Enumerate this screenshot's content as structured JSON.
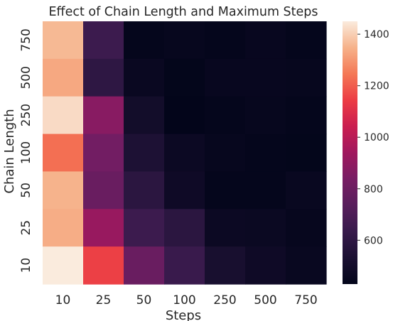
{
  "chart_data": {
    "type": "heatmap",
    "title": "Effect of Chain Length and Maximum Steps",
    "xlabel": "Steps",
    "ylabel": "Chain Length",
    "x_categories": [
      "10",
      "25",
      "50",
      "100",
      "250",
      "500",
      "750"
    ],
    "y_categories": [
      "750",
      "500",
      "250",
      "100",
      "50",
      "25",
      "10"
    ],
    "values": [
      [
        1360,
        650,
        440,
        445,
        440,
        450,
        440
      ],
      [
        1330,
        600,
        460,
        435,
        450,
        450,
        445
      ],
      [
        1420,
        880,
        500,
        430,
        440,
        445,
        440
      ],
      [
        1230,
        820,
        540,
        470,
        445,
        440,
        435
      ],
      [
        1350,
        790,
        590,
        480,
        440,
        440,
        455
      ],
      [
        1340,
        920,
        650,
        590,
        470,
        465,
        445
      ],
      [
        1450,
        1150,
        790,
        640,
        520,
        480,
        455
      ]
    ],
    "colorbar": {
      "min": 430,
      "max": 1450,
      "ticks": [
        600,
        800,
        1000,
        1200,
        1400
      ],
      "tick_labels": [
        "600",
        "800",
        "1000",
        "1200",
        "1400"
      ],
      "colormap": "rocket"
    }
  }
}
